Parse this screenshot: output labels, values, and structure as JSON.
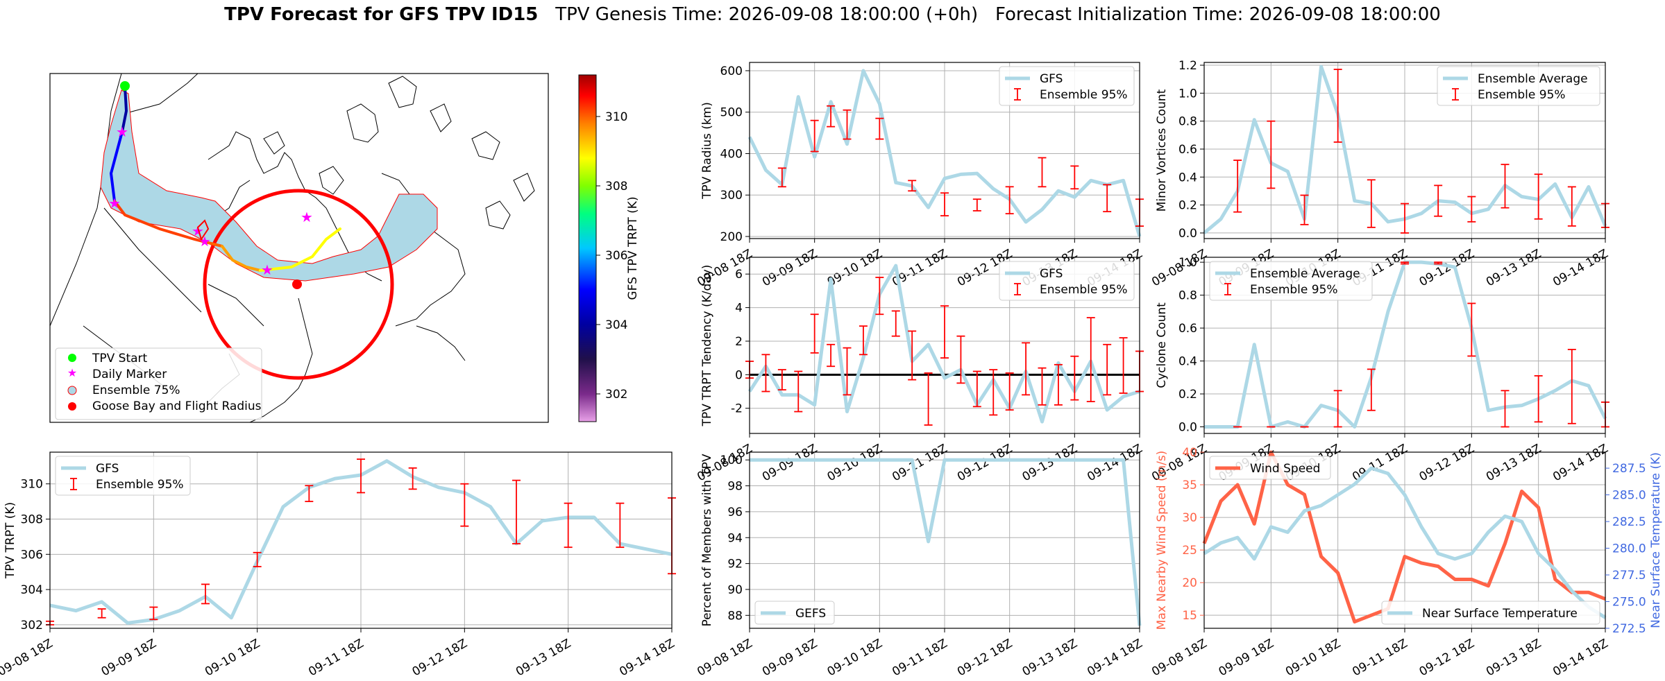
{
  "title": {
    "bold": "TPV Forecast for GFS TPV ID15",
    "genesis": "TPV Genesis Time: 2026-09-08 18:00:00 (+0h)",
    "init": "Forecast Initialization Time: 2026-09-08 18:00:00"
  },
  "colors": {
    "gfs_line": "#add8e6",
    "errorbar": "#ff0000",
    "wind": "#ff6347",
    "temp_axis": "#4169e1",
    "grid": "#b0b0b0"
  },
  "map": {
    "legend": [
      "TPV Start",
      "Daily Marker",
      "Ensemble 75%",
      "Goose Bay and Flight Radius"
    ],
    "colorbar": {
      "label": "GFS TPV TRPT (K)",
      "ticks": [
        "302",
        "304",
        "306",
        "308",
        "310"
      ],
      "range": [
        301.2,
        311.2
      ]
    }
  },
  "chart_data": [
    {
      "id": "radius",
      "type": "line",
      "ylabel": "TPV Radius (km)",
      "ylim": [
        195,
        620
      ],
      "yticks": [
        "200",
        "300",
        "400",
        "500",
        "600"
      ],
      "xticks": [
        "09-08 18Z",
        "09-09 18Z",
        "09-10 18Z",
        "09-11 18Z",
        "09-12 18Z",
        "09-13 18Z",
        "09-14 18Z"
      ],
      "legend": [
        "GFS",
        "Ensemble 95%"
      ],
      "legend_pos": "top-right",
      "series": [
        {
          "name": "GFS",
          "x": [
            0,
            0.25,
            0.5,
            0.75,
            1,
            1.25,
            1.5,
            1.75,
            2,
            2.25,
            2.5,
            2.75,
            3,
            3.25,
            3.5,
            3.75,
            4,
            4.25,
            4.5,
            4.75,
            5,
            5.25,
            5.5,
            5.75,
            6
          ],
          "values": [
            440,
            360,
            325,
            537,
            392,
            525,
            423,
            600,
            520,
            330,
            322,
            270,
            340,
            350,
            352,
            315,
            290,
            235,
            265,
            310,
            295,
            335,
            325,
            335,
            200
          ]
        }
      ],
      "errorbars": [
        [
          0.5,
          320,
          365
        ],
        [
          1,
          405,
          480
        ],
        [
          1.25,
          465,
          515
        ],
        [
          1.5,
          435,
          505
        ],
        [
          2,
          435,
          485
        ],
        [
          2.5,
          310,
          335
        ],
        [
          3,
          250,
          305
        ],
        [
          3.5,
          262,
          290
        ],
        [
          4,
          255,
          320
        ],
        [
          4.5,
          320,
          390
        ],
        [
          5,
          315,
          370
        ],
        [
          5.5,
          260,
          325
        ],
        [
          6,
          225,
          290
        ]
      ]
    },
    {
      "id": "minor",
      "type": "line",
      "ylabel": "Minor Vortices Count",
      "ylim": [
        -0.04,
        1.22
      ],
      "yticks": [
        "0.0",
        "0.2",
        "0.4",
        "0.6",
        "0.8",
        "1.0",
        "1.2"
      ],
      "xticks": [
        "09-08 18Z",
        "09-09 18Z",
        "09-10 18Z",
        "09-11 18Z",
        "09-12 18Z",
        "09-13 18Z",
        "09-14 18Z"
      ],
      "legend": [
        "Ensemble Average",
        "Ensemble 95%"
      ],
      "legend_pos": "top-right",
      "series": [
        {
          "name": "Ensemble Average",
          "x": [
            0,
            0.25,
            0.5,
            0.75,
            1,
            1.25,
            1.5,
            1.75,
            2,
            2.25,
            2.5,
            2.75,
            3,
            3.25,
            3.5,
            3.75,
            4,
            4.25,
            4.5,
            4.75,
            5,
            5.25,
            5.5,
            5.75,
            6
          ],
          "values": [
            0.0,
            0.1,
            0.3,
            0.81,
            0.5,
            0.44,
            0.1,
            1.19,
            0.85,
            0.23,
            0.21,
            0.08,
            0.1,
            0.14,
            0.23,
            0.22,
            0.14,
            0.17,
            0.34,
            0.26,
            0.24,
            0.35,
            0.11,
            0.33,
            0.05
          ]
        }
      ],
      "errorbars": [
        [
          0.5,
          0.15,
          0.52
        ],
        [
          1,
          0.32,
          0.8
        ],
        [
          1.5,
          0.06,
          0.27
        ],
        [
          2,
          0.65,
          1.17
        ],
        [
          2.5,
          0.04,
          0.38
        ],
        [
          3,
          0.0,
          0.21
        ],
        [
          3.5,
          0.12,
          0.34
        ],
        [
          4,
          0.08,
          0.26
        ],
        [
          4.5,
          0.18,
          0.49
        ],
        [
          5,
          0.1,
          0.42
        ],
        [
          5.5,
          0.05,
          0.33
        ],
        [
          6,
          0.04,
          0.21
        ]
      ]
    },
    {
      "id": "tendency",
      "type": "line",
      "ylabel": "TPV TRPT Tendency (K/day)",
      "ylim": [
        -3.5,
        7.0
      ],
      "yticks": [
        "-2",
        "0",
        "2",
        "4",
        "6"
      ],
      "xticks": [
        "09-08 18Z",
        "09-09 18Z",
        "09-10 18Z",
        "09-11 18Z",
        "09-12 18Z",
        "09-13 18Z",
        "09-14 18Z"
      ],
      "legend": [
        "GFS",
        "Ensemble 95%"
      ],
      "legend_pos": "top-right",
      "series": [
        {
          "name": "GFS",
          "x": [
            0,
            0.25,
            0.5,
            0.75,
            1,
            1.25,
            1.5,
            1.75,
            2,
            2.25,
            2.5,
            2.75,
            3,
            3.25,
            3.5,
            3.75,
            4,
            4.25,
            4.5,
            4.75,
            5,
            5.25,
            5.5,
            5.75,
            6
          ],
          "values": [
            -1.0,
            0.5,
            -1.2,
            -1.2,
            -1.8,
            5.7,
            -2.2,
            1.0,
            4.8,
            6.5,
            0.8,
            1.8,
            -0.2,
            0.3,
            -1.8,
            -0.3,
            -2.0,
            0.2,
            -2.8,
            0.7,
            -1.0,
            0.8,
            -2.1,
            -1.3,
            -1.0
          ]
        }
      ],
      "errorbars": [
        [
          0,
          -0.2,
          0.8
        ],
        [
          0.25,
          -1.0,
          1.2
        ],
        [
          0.5,
          -0.9,
          0.3
        ],
        [
          0.75,
          -2.2,
          0.2
        ],
        [
          1,
          1.3,
          3.6
        ],
        [
          1.25,
          0.5,
          1.8
        ],
        [
          1.5,
          -1.2,
          1.6
        ],
        [
          1.75,
          1.2,
          2.9
        ],
        [
          2,
          3.6,
          5.8
        ],
        [
          2.25,
          2.3,
          3.8
        ],
        [
          2.5,
          -0.3,
          2.6
        ],
        [
          2.75,
          -3.0,
          0.1
        ],
        [
          3,
          1.0,
          4.1
        ],
        [
          3.25,
          -0.5,
          2.3
        ],
        [
          3.5,
          -1.9,
          0.2
        ],
        [
          3.75,
          -2.4,
          0.3
        ],
        [
          4,
          -2.1,
          0.1
        ],
        [
          4.25,
          -1.2,
          1.9
        ],
        [
          4.5,
          -1.8,
          0.4
        ],
        [
          4.75,
          -1.8,
          0.6
        ],
        [
          5,
          -1.5,
          1.1
        ],
        [
          5.25,
          -1.6,
          3.4
        ],
        [
          5.5,
          -1.2,
          1.8
        ],
        [
          5.75,
          -1.1,
          2.2
        ],
        [
          6,
          -1.0,
          1.4
        ]
      ],
      "zero_line": true
    },
    {
      "id": "cyclone",
      "type": "line",
      "ylabel": "Cyclone Count",
      "ylim": [
        -0.04,
        1.03
      ],
      "yticks": [
        "0.0",
        "0.2",
        "0.4",
        "0.6",
        "0.8",
        "1.0"
      ],
      "xticks": [
        "09-08 18Z",
        "09-09 18Z",
        "09-10 18Z",
        "09-11 18Z",
        "09-12 18Z",
        "09-13 18Z",
        "09-14 18Z"
      ],
      "legend": [
        "Ensemble Average",
        "Ensemble 95%"
      ],
      "legend_pos": "top-left",
      "series": [
        {
          "name": "Ensemble Average",
          "x": [
            0,
            0.25,
            0.5,
            0.75,
            1,
            1.25,
            1.5,
            1.75,
            2,
            2.25,
            2.5,
            2.75,
            3,
            3.25,
            3.5,
            3.75,
            4,
            4.25,
            4.5,
            4.75,
            5,
            5.25,
            5.5,
            5.75,
            6
          ],
          "values": [
            0.0,
            0.0,
            0.0,
            0.5,
            0.0,
            0.03,
            0.0,
            0.13,
            0.1,
            0.0,
            0.3,
            0.7,
            1.0,
            1.0,
            0.99,
            0.97,
            0.6,
            0.1,
            0.12,
            0.13,
            0.17,
            0.22,
            0.28,
            0.25,
            0.05
          ]
        }
      ],
      "errorbars": [
        [
          0.5,
          0.0,
          0.0
        ],
        [
          1,
          0.0,
          0.0
        ],
        [
          1.5,
          0.0,
          0.0
        ],
        [
          2,
          0.0,
          0.22
        ],
        [
          2.5,
          0.1,
          0.35
        ],
        [
          3,
          0.99,
          1.0
        ],
        [
          3.5,
          0.99,
          1.0
        ],
        [
          4,
          0.43,
          0.75
        ],
        [
          4.5,
          0.0,
          0.22
        ],
        [
          5,
          0.03,
          0.31
        ],
        [
          5.5,
          0.02,
          0.47
        ],
        [
          6,
          0.0,
          0.15
        ]
      ]
    },
    {
      "id": "trpt",
      "type": "line",
      "ylabel": "TPV TRPT (K)",
      "ylim": [
        301.8,
        311.8
      ],
      "yticks": [
        "302",
        "304",
        "306",
        "308",
        "310"
      ],
      "xticks": [
        "09-08 18Z",
        "09-09 18Z",
        "09-10 18Z",
        "09-11 18Z",
        "09-12 18Z",
        "09-13 18Z",
        "09-14 18Z"
      ],
      "legend": [
        "GFS",
        "Ensemble 95%"
      ],
      "legend_pos": "top-left",
      "series": [
        {
          "name": "GFS",
          "x": [
            0,
            0.25,
            0.5,
            0.75,
            1,
            1.25,
            1.5,
            1.75,
            2,
            2.25,
            2.5,
            2.75,
            3,
            3.25,
            3.5,
            3.75,
            4,
            4.25,
            4.5,
            4.75,
            5,
            5.25,
            5.5,
            5.75,
            6
          ],
          "values": [
            303.1,
            302.8,
            303.3,
            302.1,
            302.3,
            302.8,
            303.6,
            302.4,
            305.6,
            308.7,
            309.8,
            310.3,
            310.5,
            311.3,
            310.4,
            309.8,
            309.5,
            308.7,
            306.6,
            307.9,
            308.1,
            308.1,
            306.6,
            306.3,
            306.0
          ]
        }
      ],
      "errorbars": [
        [
          0,
          302.0,
          302.2
        ],
        [
          0.5,
          302.4,
          302.9
        ],
        [
          1,
          302.3,
          303.0
        ],
        [
          1.5,
          303.2,
          304.3
        ],
        [
          2,
          305.3,
          306.1
        ],
        [
          2.5,
          309.0,
          309.9
        ],
        [
          3,
          309.5,
          311.4
        ],
        [
          3.5,
          309.7,
          310.9
        ],
        [
          4,
          307.6,
          310.0
        ],
        [
          4.5,
          306.6,
          310.2
        ],
        [
          5,
          306.4,
          308.9
        ],
        [
          5.5,
          306.4,
          308.9
        ],
        [
          6,
          304.9,
          309.2
        ]
      ]
    },
    {
      "id": "percent",
      "type": "line",
      "ylabel": "Percent of Members with TPV",
      "ylim": [
        87,
        100.6
      ],
      "yticks": [
        "88",
        "90",
        "92",
        "94",
        "96",
        "98",
        "100"
      ],
      "xticks": [
        "09-08 18Z",
        "09-09 18Z",
        "09-10 18Z",
        "09-11 18Z",
        "09-12 18Z",
        "09-13 18Z",
        "09-14 18Z"
      ],
      "legend": [
        "GEFS"
      ],
      "legend_pos": "bottom-left",
      "series": [
        {
          "name": "GEFS",
          "x": [
            0,
            0.25,
            0.5,
            0.75,
            1,
            1.25,
            1.5,
            1.75,
            2,
            2.25,
            2.5,
            2.75,
            3,
            3.25,
            3.5,
            3.75,
            4,
            4.25,
            4.5,
            4.75,
            5,
            5.25,
            5.5,
            5.75,
            6
          ],
          "values": [
            100,
            100,
            100,
            100,
            100,
            100,
            100,
            100,
            100,
            100,
            100,
            93.7,
            100,
            100,
            100,
            100,
            100,
            100,
            100,
            100,
            100,
            100,
            100,
            100,
            87.2
          ]
        }
      ]
    },
    {
      "id": "wind_temp",
      "type": "line",
      "ylabel": "Max Nearby Wind Speed (m/s)",
      "ylim": [
        13,
        40
      ],
      "yticks": [
        "15",
        "20",
        "25",
        "30",
        "35",
        "40"
      ],
      "y2label": "Near Surface Temperature (K)",
      "y2lim": [
        272.5,
        289
      ],
      "y2ticks": [
        "272.5",
        "275.0",
        "277.5",
        "280.0",
        "282.5",
        "285.0",
        "287.5"
      ],
      "xticks": [
        "09-08 18Z",
        "09-09 18Z",
        "09-10 18Z",
        "09-11 18Z",
        "09-12 18Z",
        "09-13 18Z",
        "09-14 18Z"
      ],
      "legend": [
        "Wind Speed"
      ],
      "legend2": [
        "Near Surface Temperature"
      ],
      "series": [
        {
          "name": "Wind Speed",
          "axis": "left",
          "x": [
            0,
            0.25,
            0.5,
            0.75,
            1,
            1.25,
            1.5,
            1.75,
            2,
            2.25,
            2.5,
            2.75,
            3,
            3.25,
            3.5,
            3.75,
            4,
            4.25,
            4.5,
            4.75,
            5,
            5.25,
            5.5,
            5.75,
            6
          ],
          "values": [
            26,
            32.5,
            35,
            29,
            40,
            35,
            33.5,
            24,
            21.5,
            14,
            15,
            16,
            24,
            23,
            22.5,
            20.5,
            20.5,
            19.5,
            26,
            34,
            31.5,
            20.5,
            18.5,
            18.5,
            17.5
          ]
        },
        {
          "name": "Near Surface Temperature",
          "axis": "right",
          "x": [
            0,
            0.25,
            0.5,
            0.75,
            1,
            1.25,
            1.5,
            1.75,
            2,
            2.25,
            2.5,
            2.75,
            3,
            3.25,
            3.5,
            3.75,
            4,
            4.25,
            4.5,
            4.75,
            5,
            5.25,
            5.5,
            5.75,
            6
          ],
          "values": [
            279.5,
            280.5,
            281,
            279,
            282,
            281.5,
            283.5,
            284,
            285,
            286,
            287.5,
            287,
            285,
            282,
            279.5,
            279,
            279.5,
            281.5,
            283,
            282.5,
            279.5,
            278,
            276,
            274.5,
            273.5
          ]
        }
      ]
    }
  ]
}
